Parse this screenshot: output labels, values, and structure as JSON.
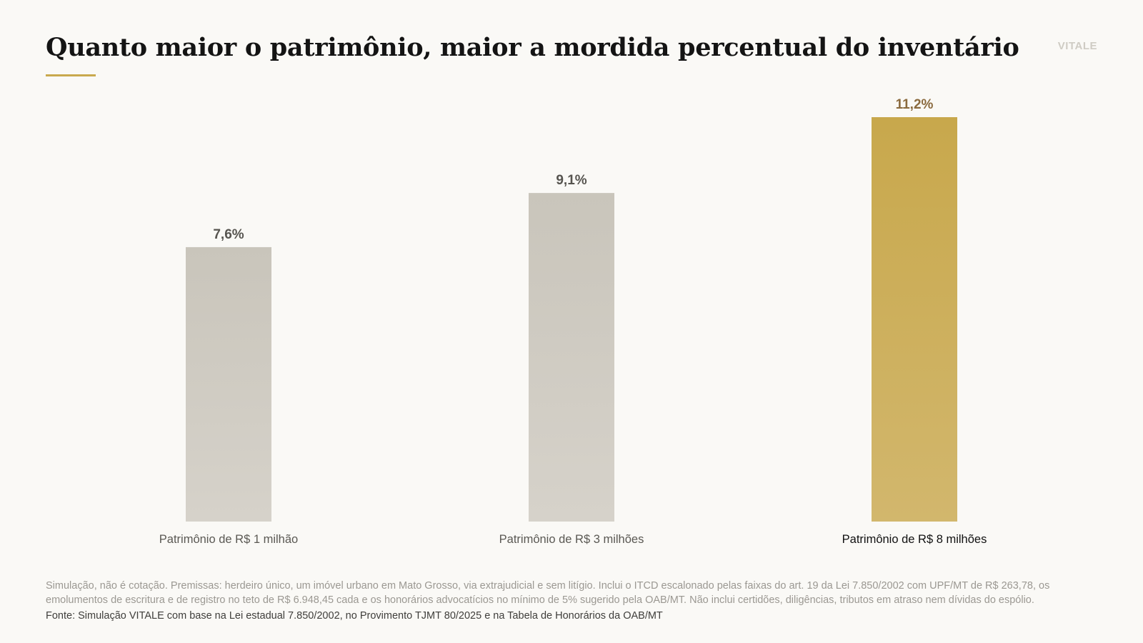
{
  "header": {
    "title": "Quanto maior o patrimônio, maior a mordida percentual do inventário",
    "brand": "VITALE"
  },
  "colors": {
    "bar_default": "#d0ccc4",
    "bar_highlight": "#c9a94e",
    "label_default": "#56544f",
    "label_highlight": "#8a6a3e",
    "accent": "#c9a94e"
  },
  "chart_data": {
    "type": "bar",
    "categories": [
      "Patrimônio de R$ 1 milhão",
      "Patrimônio de R$ 3 milhões",
      "Patrimônio de R$ 8 milhões"
    ],
    "values": [
      7.6,
      9.1,
      11.2
    ],
    "value_labels": [
      "7,6%",
      "9,1%",
      "11,2%"
    ],
    "highlight_index": 2,
    "title": "Quanto maior o patrimônio, maior a mordida percentual do inventário",
    "xlabel": "",
    "ylabel": "",
    "ylim": [
      0,
      11.2
    ],
    "grid": false,
    "legend": "none"
  },
  "footer": {
    "note": "Simulação, não é cotação. Premissas: herdeiro único, um imóvel urbano em Mato Grosso, via extrajudicial e sem litígio. Inclui o ITCD escalonado pelas faixas do art. 19 da Lei 7.850/2002 com UPF/MT de R$ 263,78, os emolumentos de escritura e de registro no teto de R$ 6.948,45 cada e os honorários advocatícios no mínimo de 5% sugerido pela OAB/MT. Não inclui certidões, diligências, tributos em atraso nem dívidas do espólio.",
    "source": "Fonte: Simulação VITALE com base na Lei estadual 7.850/2002, no Provimento TJMT 80/2025 e na Tabela de Honorários da OAB/MT"
  }
}
